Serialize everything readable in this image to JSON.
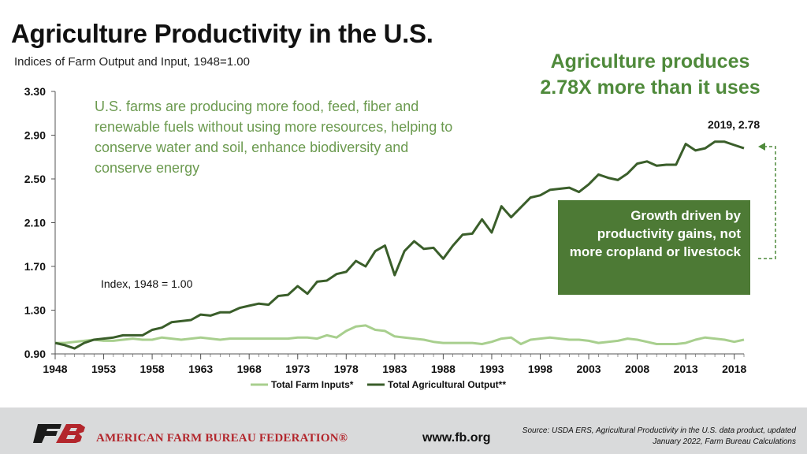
{
  "title": "Agriculture Productivity in the U.S.",
  "subtitle": "Indices of Farm Output and Input, 1948=1.00",
  "callout_text": "U.S. farms are producing more food, feed, fiber and renewable fuels without using more resources, helping to conserve water and soil, enhance biodiversity and conserve energy",
  "headline": "Agriculture produces 2.78X more than it uses",
  "end_label": "2019, 2.78",
  "index_note": "Index, 1948 = 1.00",
  "box_text": "Growth driven by productivity gains, not more cropland or livestock",
  "footer": {
    "org": "AMERICAN FARM BUREAU FEDERATION®",
    "url": "www.fb.org",
    "source": "Source: USDA ERS, Agricultural Productivity in the U.S. data product, updated January 2022, Farm Bureau Calculations"
  },
  "colors": {
    "output": "#3a5e2a",
    "input": "#a8cf8e",
    "accent": "#4f8a3b",
    "brand_red": "#b3262c",
    "footer_bg": "#d9dadb"
  },
  "chart_data": {
    "type": "line",
    "x": [
      1948,
      1949,
      1950,
      1951,
      1952,
      1953,
      1954,
      1955,
      1956,
      1957,
      1958,
      1959,
      1960,
      1961,
      1962,
      1963,
      1964,
      1965,
      1966,
      1967,
      1968,
      1969,
      1970,
      1971,
      1972,
      1973,
      1974,
      1975,
      1976,
      1977,
      1978,
      1979,
      1980,
      1981,
      1982,
      1983,
      1984,
      1985,
      1986,
      1987,
      1988,
      1989,
      1990,
      1991,
      1992,
      1993,
      1994,
      1995,
      1996,
      1997,
      1998,
      1999,
      2000,
      2001,
      2002,
      2003,
      2004,
      2005,
      2006,
      2007,
      2008,
      2009,
      2010,
      2011,
      2012,
      2013,
      2014,
      2015,
      2016,
      2017,
      2018,
      2019
    ],
    "series": [
      {
        "name": "Total Farm Inputs*",
        "color": "#a8cf8e",
        "values": [
          1.0,
          1.0,
          1.01,
          1.02,
          1.03,
          1.02,
          1.02,
          1.03,
          1.04,
          1.03,
          1.03,
          1.05,
          1.04,
          1.03,
          1.04,
          1.05,
          1.04,
          1.03,
          1.04,
          1.04,
          1.04,
          1.04,
          1.04,
          1.04,
          1.04,
          1.05,
          1.05,
          1.04,
          1.07,
          1.05,
          1.11,
          1.15,
          1.16,
          1.12,
          1.11,
          1.06,
          1.05,
          1.04,
          1.03,
          1.01,
          1.0,
          1.0,
          1.0,
          1.0,
          0.99,
          1.01,
          1.04,
          1.05,
          0.99,
          1.03,
          1.04,
          1.05,
          1.04,
          1.03,
          1.03,
          1.02,
          1.0,
          1.01,
          1.02,
          1.04,
          1.03,
          1.01,
          0.99,
          0.99,
          0.99,
          1.0,
          1.03,
          1.05,
          1.04,
          1.03,
          1.01,
          1.03
        ]
      },
      {
        "name": "Total Agricultural Output**",
        "color": "#3a5e2a",
        "values": [
          1.0,
          0.98,
          0.95,
          1.0,
          1.03,
          1.04,
          1.05,
          1.07,
          1.07,
          1.07,
          1.12,
          1.14,
          1.19,
          1.2,
          1.21,
          1.26,
          1.25,
          1.28,
          1.28,
          1.32,
          1.34,
          1.36,
          1.35,
          1.43,
          1.44,
          1.52,
          1.45,
          1.56,
          1.57,
          1.63,
          1.65,
          1.75,
          1.7,
          1.84,
          1.89,
          1.62,
          1.84,
          1.93,
          1.86,
          1.87,
          1.77,
          1.89,
          1.99,
          2.0,
          2.13,
          2.01,
          2.25,
          2.15,
          2.24,
          2.33,
          2.35,
          2.4,
          2.41,
          2.42,
          2.38,
          2.45,
          2.54,
          2.51,
          2.49,
          2.55,
          2.64,
          2.66,
          2.62,
          2.63,
          2.63,
          2.82,
          2.76,
          2.78,
          2.84,
          2.84,
          2.81,
          2.78
        ]
      }
    ],
    "title": "Agriculture Productivity in the U.S.",
    "xlabel": "",
    "ylabel": "",
    "ylim": [
      0.9,
      3.3
    ],
    "yticks": [
      "0.90",
      "1.30",
      "1.70",
      "2.10",
      "2.50",
      "2.90",
      "3.30"
    ],
    "xticks": [
      "1948",
      "1953",
      "1958",
      "1963",
      "1968",
      "1973",
      "1978",
      "1983",
      "1988",
      "1993",
      "1998",
      "2003",
      "2008",
      "2013",
      "2018"
    ],
    "grid": false,
    "legend": "bottom"
  }
}
